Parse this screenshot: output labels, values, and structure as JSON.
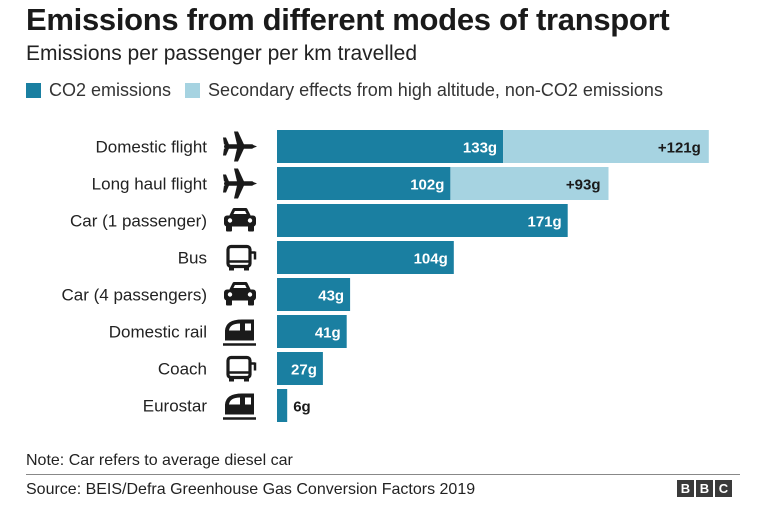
{
  "title": "Emissions from different modes of transport",
  "subtitle": "Emissions per passenger per km travelled",
  "legend": [
    {
      "label": "CO2 emissions",
      "color": "#1a7fa1"
    },
    {
      "label": "Secondary effects from high altitude, non-CO2 emissions",
      "color": "#a6d3e1"
    }
  ],
  "chart_data": {
    "type": "bar",
    "orientation": "horizontal",
    "stacked": true,
    "title": "Emissions from different modes of transport",
    "xlabel": "",
    "ylabel": "",
    "grid": false,
    "legend_position": "top",
    "xlim": [
      0,
      260
    ],
    "categories": [
      "Domestic flight",
      "Long haul flight",
      "Car (1 passenger)",
      "Bus",
      "Car (4 passengers)",
      "Domestic rail",
      "Coach",
      "Eurostar"
    ],
    "icons": [
      "plane-icon",
      "plane-icon",
      "car-icon",
      "bus-icon",
      "car-icon",
      "train-icon",
      "bus-icon",
      "train-icon"
    ],
    "series": [
      {
        "name": "CO2 emissions",
        "color": "#1a7fa1",
        "values": [
          133,
          102,
          171,
          104,
          43,
          41,
          27,
          6
        ],
        "labels": [
          "133g",
          "102g",
          "171g",
          "104g",
          "43g",
          "41g",
          "27g",
          "6g"
        ]
      },
      {
        "name": "Secondary effects from high altitude, non-CO2 emissions",
        "color": "#a6d3e1",
        "values": [
          121,
          93,
          0,
          0,
          0,
          0,
          0,
          0
        ],
        "labels": [
          "+121g",
          "+93g",
          "",
          "",
          "",
          "",
          "",
          ""
        ]
      }
    ]
  },
  "note": "Note: Car refers to average diesel car",
  "source": "Source: BEIS/Defra Greenhouse Gas Conversion Factors 2019",
  "brand": [
    "B",
    "B",
    "C"
  ]
}
